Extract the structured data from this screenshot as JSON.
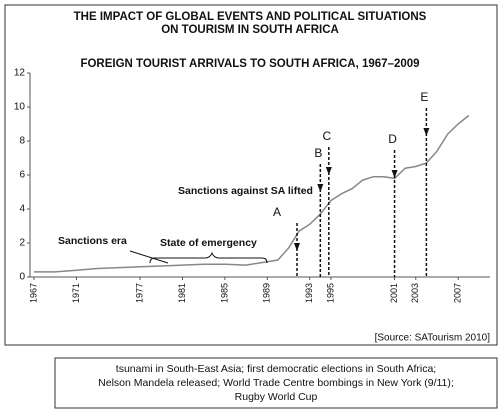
{
  "chart_data": {
    "type": "line",
    "title": [
      "THE IMPACT OF GLOBAL EVENTS AND POLITICAL SITUATIONS",
      "ON TOURISM IN SOUTH AFRICA"
    ],
    "subtitle": "FOREIGN TOURIST ARRIVALS TO SOUTH AFRICA, 1967–2009",
    "source": "[Source:  SATourism 2010]",
    "key_lines": [
      "tsunami in South-East Asia;  first democratic elections in South Africa;",
      "Nelson Mandela released;  World Trade Centre bombings in New York (9/11);",
      "Rugby World Cup"
    ],
    "x": [
      1967,
      1969,
      1971,
      1973,
      1975,
      1977,
      1979,
      1981,
      1983,
      1985,
      1987,
      1989,
      1990,
      1991,
      1992,
      1993,
      1994,
      1995,
      1996,
      1997,
      1998,
      1999,
      2000,
      2001,
      2002,
      2003,
      2004,
      2005,
      2006,
      2007,
      2008
    ],
    "series": [
      {
        "color": "#888888",
        "values": [
          0.3,
          0.3,
          0.4,
          0.5,
          0.55,
          0.6,
          0.65,
          0.7,
          0.75,
          0.75,
          0.7,
          0.9,
          1.0,
          1.7,
          2.7,
          3.1,
          3.7,
          4.5,
          4.9,
          5.2,
          5.7,
          5.9,
          5.9,
          5.8,
          6.4,
          6.5,
          6.7,
          7.4,
          8.4,
          9.0,
          9.5
        ]
      }
    ],
    "xlim": [
      1967,
      2010
    ],
    "ylim": [
      0,
      12
    ],
    "xticks": [
      1967,
      1971,
      1977,
      1981,
      1985,
      1989,
      1993,
      1995,
      2001,
      2003,
      2007
    ],
    "yticks": [
      0,
      2,
      4,
      6,
      8,
      10,
      12
    ],
    "events": [
      {
        "label": "A",
        "x": 1991.8
      },
      {
        "label": "B",
        "x": 1994
      },
      {
        "label": "C",
        "x": 1994.8
      },
      {
        "label": "D",
        "x": 2001
      },
      {
        "label": "E",
        "x": 2004
      }
    ],
    "annotations": [
      "Sanctions era",
      "State of emergency",
      "Sanctions against SA lifted"
    ]
  }
}
